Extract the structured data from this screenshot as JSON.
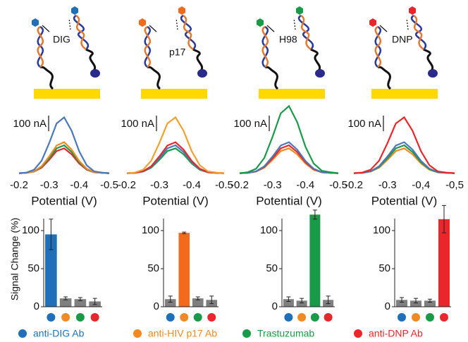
{
  "diagram_labels": [
    "DIG",
    "p17",
    "H98",
    "DNP"
  ],
  "legend": [
    {
      "label": "anti-DIG Ab",
      "color": "#1f6fb9"
    },
    {
      "label": "anti-HIV p17 Ab",
      "color": "#f08a24"
    },
    {
      "label": "Trastuzumab",
      "color": "#1a9a48"
    },
    {
      "label": "anti-DNP Ab",
      "color": "#e8262b"
    }
  ],
  "chart_data": [
    {
      "type": "line",
      "x": [
        -0.2,
        -0.225,
        -0.25,
        -0.275,
        -0.3,
        -0.325,
        -0.35,
        -0.375,
        -0.4,
        -0.425,
        -0.45,
        -0.475,
        -0.5
      ],
      "xlim": [
        -0.2,
        -0.5
      ],
      "xticks": [
        -0.2,
        -0.3,
        -0.4,
        -0.5
      ],
      "xlabel": "Potential (V)",
      "ylim": [
        0,
        450
      ],
      "scale_bar": {
        "value": 100,
        "label": "100 nA"
      },
      "series": [
        {
          "color": "#e8262b",
          "values": [
            20,
            22,
            30,
            55,
            105,
            161,
            178,
            140,
            82,
            42,
            25,
            22,
            20
          ]
        },
        {
          "color": "#1a9a48",
          "values": [
            20,
            22,
            31,
            60,
            115,
            178,
            198,
            155,
            90,
            45,
            25,
            22,
            20
          ]
        },
        {
          "color": "#f08a24",
          "values": [
            20,
            22,
            32,
            64,
            126,
            196,
            218,
            170,
            98,
            48,
            26,
            22,
            20
          ]
        },
        {
          "color": "#4a78b8",
          "values": [
            20,
            24,
            42,
            99,
            211,
            337,
            376,
            290,
            160,
            70,
            31,
            24,
            20
          ]
        }
      ]
    },
    {
      "type": "line",
      "x": [
        -0.2,
        -0.225,
        -0.25,
        -0.275,
        -0.3,
        -0.325,
        -0.35,
        -0.375,
        -0.4,
        -0.425,
        -0.45,
        -0.475,
        -0.5
      ],
      "xlim": [
        -0.2,
        -0.5
      ],
      "xticks": [
        -0.2,
        -0.3,
        -0.4,
        -0.5
      ],
      "xlabel": "Potential (V)",
      "ylim": [
        0,
        450
      ],
      "scale_bar": {
        "value": 100,
        "label": "100 nA"
      },
      "series": [
        {
          "color": "#1a9a48",
          "values": [
            20,
            22,
            30,
            55,
            105,
            161,
            178,
            140,
            82,
            42,
            25,
            22,
            20
          ]
        },
        {
          "color": "#4a78b8",
          "values": [
            20,
            22,
            31,
            60,
            115,
            178,
            198,
            155,
            90,
            45,
            25,
            22,
            20
          ]
        },
        {
          "color": "#e8262b",
          "values": [
            20,
            22,
            32,
            64,
            126,
            196,
            218,
            170,
            98,
            48,
            26,
            22,
            20
          ]
        },
        {
          "color": "#f0a030",
          "values": [
            20,
            24,
            42,
            99,
            211,
            337,
            376,
            290,
            160,
            70,
            31,
            24,
            20
          ]
        }
      ]
    },
    {
      "type": "line",
      "x": [
        -0.2,
        -0.225,
        -0.25,
        -0.275,
        -0.3,
        -0.325,
        -0.35,
        -0.375,
        -0.4,
        -0.425,
        -0.45,
        -0.475,
        -0.5
      ],
      "xlim": [
        -0.2,
        -0.5
      ],
      "xticks": [
        -0.2,
        -0.3,
        -0.4,
        -0.5
      ],
      "xlabel": "Potential (V)",
      "ylim": [
        0,
        450
      ],
      "scale_bar": {
        "value": 100,
        "label": "100 nA"
      },
      "series": [
        {
          "color": "#f08a24",
          "values": [
            20,
            22,
            30,
            55,
            105,
            161,
            178,
            140,
            82,
            42,
            25,
            22,
            20
          ]
        },
        {
          "color": "#e8262b",
          "values": [
            20,
            22,
            31,
            60,
            115,
            178,
            198,
            155,
            90,
            45,
            25,
            22,
            20
          ]
        },
        {
          "color": "#4a78b8",
          "values": [
            20,
            22,
            32,
            64,
            126,
            196,
            218,
            170,
            98,
            48,
            26,
            22,
            20
          ]
        },
        {
          "color": "#1a9a48",
          "values": [
            20,
            26,
            48,
            117,
            252,
            402,
            448,
            345,
            190,
            82,
            35,
            26,
            20
          ]
        }
      ]
    },
    {
      "type": "line",
      "x": [
        -0.2,
        -0.225,
        -0.25,
        -0.275,
        -0.3,
        -0.325,
        -0.35,
        -0.375,
        -0.4,
        -0.425,
        -0.45,
        -0.475,
        -0.5
      ],
      "xlim": [
        -0.2,
        -0.5
      ],
      "xticks": [
        -0.2,
        -0.3,
        {
          "value": -0.4,
          "label": "-0,4"
        },
        {
          "value": -0.5,
          "label": "-0,5"
        }
      ],
      "xlabel": "Potential (V)",
      "ylim": [
        0,
        450
      ],
      "scale_bar": {
        "value": 100,
        "label": "100 nA"
      },
      "series": [
        {
          "color": "#f08a24",
          "values": [
            20,
            22,
            30,
            55,
            105,
            161,
            178,
            140,
            82,
            42,
            25,
            22,
            20
          ]
        },
        {
          "color": "#1a9a48",
          "values": [
            20,
            22,
            31,
            60,
            115,
            178,
            198,
            155,
            90,
            45,
            25,
            22,
            20
          ]
        },
        {
          "color": "#4a78b8",
          "values": [
            20,
            22,
            32,
            64,
            126,
            196,
            218,
            170,
            98,
            48,
            26,
            22,
            20
          ]
        },
        {
          "color": "#e8262b",
          "values": [
            20,
            24,
            42,
            99,
            211,
            337,
            376,
            290,
            160,
            70,
            31,
            24,
            20
          ]
        }
      ]
    },
    {
      "type": "bar",
      "categories": [
        null,
        null,
        null,
        null
      ],
      "values": [
        95,
        11,
        10,
        7
      ],
      "errors": [
        20,
        2,
        2,
        4
      ],
      "colors": [
        "#1f6fb9",
        "#7f7f7f",
        "#7f7f7f",
        "#7f7f7f"
      ],
      "dot_colors": [
        "#1f6fb9",
        "#f08a24",
        "#1a9a48",
        "#e8262b"
      ],
      "ylim": [
        0,
        125
      ],
      "yticks": [
        0,
        50,
        100
      ],
      "ylabel": "Signal Change (%)"
    },
    {
      "type": "bar",
      "categories": [
        null,
        null,
        null,
        null
      ],
      "values": [
        10,
        97,
        11,
        9
      ],
      "errors": [
        4,
        1,
        2,
        5
      ],
      "colors": [
        "#7f7f7f",
        "#f26b1d",
        "#7f7f7f",
        "#7f7f7f"
      ],
      "dot_colors": [
        "#1f6fb9",
        "#f08a24",
        "#1a9a48",
        "#e8262b"
      ],
      "ylim": [
        0,
        125
      ],
      "yticks": [
        0,
        50,
        100
      ]
    },
    {
      "type": "bar",
      "categories": [
        null,
        null,
        null,
        null
      ],
      "values": [
        10,
        8,
        121,
        9
      ],
      "errors": [
        3,
        3,
        6,
        5
      ],
      "colors": [
        "#7f7f7f",
        "#7f7f7f",
        "#1a9a48",
        "#7f7f7f"
      ],
      "dot_colors": [
        "#1f6fb9",
        "#f08a24",
        "#1a9a48",
        "#e8262b"
      ],
      "ylim": [
        0,
        125
      ],
      "yticks": [
        0,
        50,
        100
      ]
    },
    {
      "type": "bar",
      "categories": [
        null,
        null,
        null,
        null
      ],
      "values": [
        9,
        8,
        8,
        115
      ],
      "errors": [
        3,
        3,
        2,
        18
      ],
      "colors": [
        "#7f7f7f",
        "#7f7f7f",
        "#7f7f7f",
        "#e8262b"
      ],
      "dot_colors": [
        "#1f6fb9",
        "#f08a24",
        "#1a9a48",
        "#e8262b"
      ],
      "ylim": [
        0,
        125
      ],
      "yticks": [
        0,
        50,
        100
      ]
    }
  ]
}
